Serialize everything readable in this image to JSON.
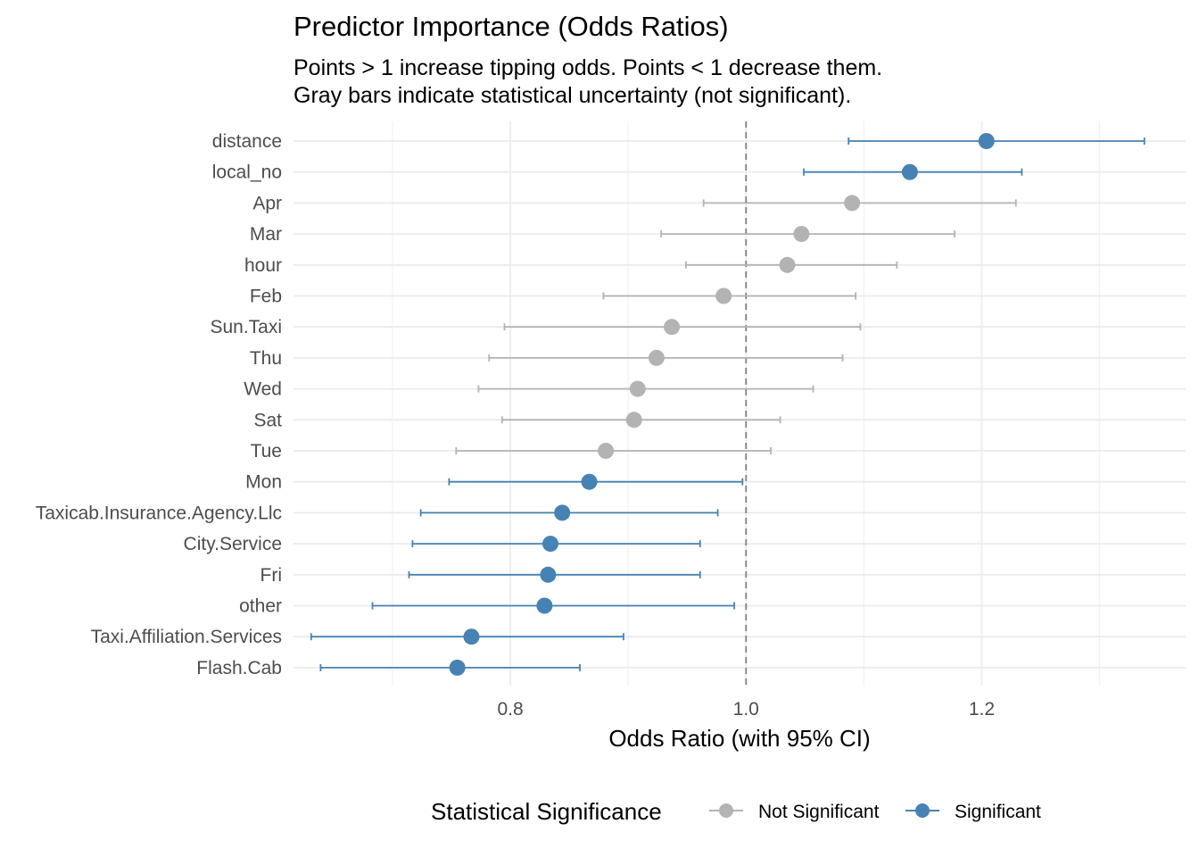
{
  "chart_data": {
    "type": "scatter",
    "subtype": "forest-plot",
    "title": "Predictor Importance (Odds Ratios)",
    "subtitle": [
      "Points > 1 increase tipping odds. Points < 1 decrease them.",
      "Gray bars indicate statistical uncertainty (not significant)."
    ],
    "xlabel": "Odds Ratio (with 95% CI)",
    "ylabel": "",
    "xlim": [
      0.616,
      1.373
    ],
    "x_ticks": [
      0.8,
      1.0,
      1.2
    ],
    "x_tick_labels": [
      "0.8",
      "1.0",
      "1.2"
    ],
    "x_minor_ticks": [
      0.7,
      0.9,
      1.1,
      1.3
    ],
    "reference_line": 1.0,
    "grid": true,
    "legend": {
      "title": "Statistical Significance",
      "position": "bottom",
      "entries": [
        {
          "label": "Not Significant",
          "color": "#b3b3b3"
        },
        {
          "label": "Significant",
          "color": "#4682b4"
        }
      ]
    },
    "colors": {
      "not_significant": "#b3b3b3",
      "significant": "#4682b4",
      "reference_line": "#808080"
    },
    "categories": [
      "distance",
      "local_no",
      "Apr",
      "Mar",
      "hour",
      "Feb",
      "Sun.Taxi",
      "Thu",
      "Wed",
      "Sat",
      "Tue",
      "Mon",
      "Taxicab.Insurance.Agency.Llc",
      "City.Service",
      "Fri",
      "other",
      "Taxi.Affiliation.Services",
      "Flash.Cab"
    ],
    "points": [
      {
        "label": "distance",
        "or": 1.204,
        "lo": 1.087,
        "hi": 1.338,
        "significant": true
      },
      {
        "label": "local_no",
        "or": 1.139,
        "lo": 1.049,
        "hi": 1.234,
        "significant": true
      },
      {
        "label": "Apr",
        "or": 1.09,
        "lo": 0.964,
        "hi": 1.229,
        "significant": false
      },
      {
        "label": "Mar",
        "or": 1.047,
        "lo": 0.928,
        "hi": 1.177,
        "significant": false
      },
      {
        "label": "hour",
        "or": 1.035,
        "lo": 0.949,
        "hi": 1.128,
        "significant": false
      },
      {
        "label": "Feb",
        "or": 0.981,
        "lo": 0.879,
        "hi": 1.093,
        "significant": false
      },
      {
        "label": "Sun.Taxi",
        "or": 0.937,
        "lo": 0.795,
        "hi": 1.097,
        "significant": false
      },
      {
        "label": "Thu",
        "or": 0.924,
        "lo": 0.782,
        "hi": 1.082,
        "significant": false
      },
      {
        "label": "Wed",
        "or": 0.908,
        "lo": 0.773,
        "hi": 1.057,
        "significant": false
      },
      {
        "label": "Sat",
        "or": 0.905,
        "lo": 0.793,
        "hi": 1.029,
        "significant": false
      },
      {
        "label": "Tue",
        "or": 0.881,
        "lo": 0.754,
        "hi": 1.021,
        "significant": false
      },
      {
        "label": "Mon",
        "or": 0.867,
        "lo": 0.748,
        "hi": 0.997,
        "significant": true
      },
      {
        "label": "Taxicab.Insurance.Agency.Llc",
        "or": 0.844,
        "lo": 0.724,
        "hi": 0.976,
        "significant": true
      },
      {
        "label": "City.Service",
        "or": 0.834,
        "lo": 0.717,
        "hi": 0.961,
        "significant": true
      },
      {
        "label": "Fri",
        "or": 0.832,
        "lo": 0.714,
        "hi": 0.961,
        "significant": true
      },
      {
        "label": "other",
        "or": 0.829,
        "lo": 0.683,
        "hi": 0.99,
        "significant": true
      },
      {
        "label": "Taxi.Affiliation.Services",
        "or": 0.767,
        "lo": 0.631,
        "hi": 0.896,
        "significant": true
      },
      {
        "label": "Flash.Cab",
        "or": 0.755,
        "lo": 0.639,
        "hi": 0.859,
        "significant": true
      }
    ]
  }
}
